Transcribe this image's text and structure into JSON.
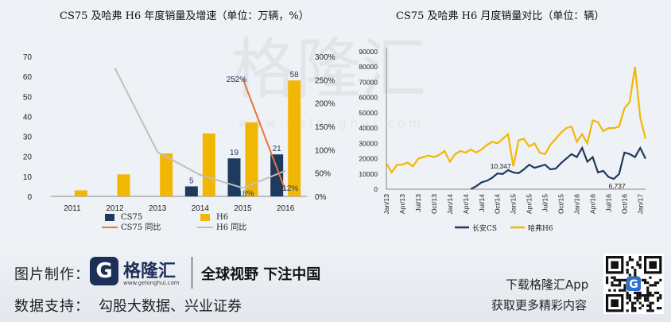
{
  "watermark": {
    "brand": "格隆汇",
    "url": "w w w . g e l o n g h u i . c o m"
  },
  "chart_data": [
    {
      "type": "bar",
      "title": "CS75 及哈弗 H6 年度销量及增速（单位：万辆，%）",
      "categories": [
        "2011",
        "2012",
        "2013",
        "2014",
        "2015",
        "2016"
      ],
      "ylim": [
        0,
        70
      ],
      "yticks": [
        "0",
        "10",
        "20",
        "30",
        "40",
        "50",
        "60",
        "70"
      ],
      "y2lim": [
        0,
        3
      ],
      "y2ticks": [
        "0%",
        "50%",
        "100%",
        "150%",
        "200%",
        "250%",
        "300%"
      ],
      "series": [
        {
          "name": "CS75",
          "kind": "bar",
          "color": "#1f3a5f",
          "values": [
            0,
            0,
            0,
            5,
            19,
            21
          ]
        },
        {
          "name": "H6",
          "kind": "bar",
          "color": "#f2b705",
          "values": [
            3,
            11,
            21.5,
            31.5,
            37,
            58
          ]
        },
        {
          "name": "CS75 同比",
          "kind": "line",
          "axis": "right",
          "color": "#e8743b",
          "values": [
            null,
            null,
            null,
            null,
            2.52,
            0.12
          ]
        },
        {
          "name": "H6 同比",
          "kind": "line",
          "axis": "right",
          "color": "#bfbfbf",
          "values": [
            null,
            2.75,
            0.95,
            0.46,
            0.18,
            0.55
          ]
        }
      ],
      "data_labels": [
        {
          "text": "5",
          "x": "2014",
          "value": 5,
          "color": "#1f3a5f"
        },
        {
          "text": "19",
          "x": "2015",
          "value": 19,
          "color": "#1f3a5f"
        },
        {
          "text": "21",
          "x": "2016",
          "value": 21,
          "color": "#1f3a5f"
        },
        {
          "text": "58",
          "x": "2016",
          "value": 58,
          "color": "#1f3a5f"
        },
        {
          "text": "252%",
          "x": "2015",
          "value": 2.52,
          "color": "#1f3a5f"
        },
        {
          "text": "18%",
          "x": "2015",
          "value": 0.18,
          "color": "#1f3a5f"
        },
        {
          "text": "12%",
          "x": "2016",
          "value": 0.12,
          "color": "#1f3a5f"
        }
      ],
      "legend_position": "bottom"
    },
    {
      "type": "line",
      "title": "CS75 及哈弗 H6 月度销量对比（单位：辆）",
      "x": [
        "Jan/13",
        "Feb/13",
        "Mar/13",
        "Apr/13",
        "May/13",
        "Jun/13",
        "Jul/13",
        "Aug/13",
        "Sep/13",
        "Oct/13",
        "Nov/13",
        "Dec/13",
        "Jan/14",
        "Feb/14",
        "Mar/14",
        "Apr/14",
        "May/14",
        "Jun/14",
        "Jul/14",
        "Aug/14",
        "Sep/14",
        "Oct/14",
        "Nov/14",
        "Dec/14",
        "Jan/15",
        "Feb/15",
        "Mar/15",
        "Apr/15",
        "May/15",
        "Jun/15",
        "Jul/15",
        "Aug/15",
        "Sep/15",
        "Oct/15",
        "Nov/15",
        "Dec/15",
        "Jan/16",
        "Feb/16",
        "Mar/16",
        "Apr/16",
        "May/16",
        "Jun/16",
        "Jul/16",
        "Aug/16",
        "Sep/16",
        "Oct/16",
        "Nov/16",
        "Dec/16",
        "Jan/17",
        "Feb/17"
      ],
      "xticks": [
        "Jan/13",
        "Apr/13",
        "Jul/13",
        "Oct/13",
        "Jan/14",
        "Apr/14",
        "Jul/14",
        "Oct/14",
        "Jan/15",
        "Apr/15",
        "Jul/15",
        "Oct/15",
        "Jan/16",
        "Apr/16",
        "Jul/16",
        "Oct/16",
        "Jan/17"
      ],
      "ylim": [
        0,
        90000
      ],
      "yticks": [
        "0",
        "10000",
        "20000",
        "30000",
        "40000",
        "50000",
        "60000",
        "70000",
        "80000",
        "90000"
      ],
      "series": [
        {
          "name": "长安CS",
          "color": "#1f3a5f",
          "values": [
            null,
            null,
            null,
            null,
            null,
            null,
            null,
            null,
            null,
            null,
            null,
            null,
            null,
            null,
            null,
            null,
            200,
            2000,
            4500,
            5500,
            7500,
            10347,
            10000,
            12500,
            11000,
            10500,
            13000,
            16000,
            14000,
            15000,
            16000,
            13000,
            13500,
            17000,
            20000,
            23000,
            21000,
            27000,
            18000,
            21000,
            11000,
            12000,
            8000,
            6737,
            10000,
            24000,
            23000,
            21000,
            27000,
            20000
          ]
        },
        {
          "name": "哈弗H6",
          "color": "#f2b705",
          "values": [
            17000,
            11000,
            16000,
            16000,
            17500,
            15000,
            20000,
            21000,
            22000,
            21000,
            22500,
            25000,
            18000,
            23000,
            25000,
            24000,
            26000,
            24000,
            26000,
            29000,
            31000,
            30000,
            33000,
            36000,
            15000,
            32000,
            33000,
            28000,
            30000,
            24000,
            23000,
            29000,
            33000,
            37000,
            40000,
            41000,
            31000,
            36000,
            30000,
            45000,
            44000,
            38000,
            40000,
            40000,
            41000,
            53000,
            57000,
            80000,
            47000,
            33000
          ]
        }
      ],
      "data_labels": [
        {
          "text": "10,347",
          "x": "Oct/14",
          "value": 10347,
          "color": "#222"
        },
        {
          "text": "6,737",
          "x": "Aug/16",
          "value": 6737,
          "color": "#222"
        }
      ],
      "legend_position": "bottom"
    }
  ],
  "footer": {
    "credit_label": "图片制作：",
    "logo_letter": "G",
    "logo_name": "格隆汇",
    "logo_url": "www.gelonghui.com",
    "slogan": "全球视野 下注中国",
    "support_label": "数据支持：",
    "support_text": "勾股大数据、兴业证券",
    "app_line1": "下载格隆汇App",
    "app_line2": "获取更多精彩内容",
    "qr_badge": "G"
  }
}
